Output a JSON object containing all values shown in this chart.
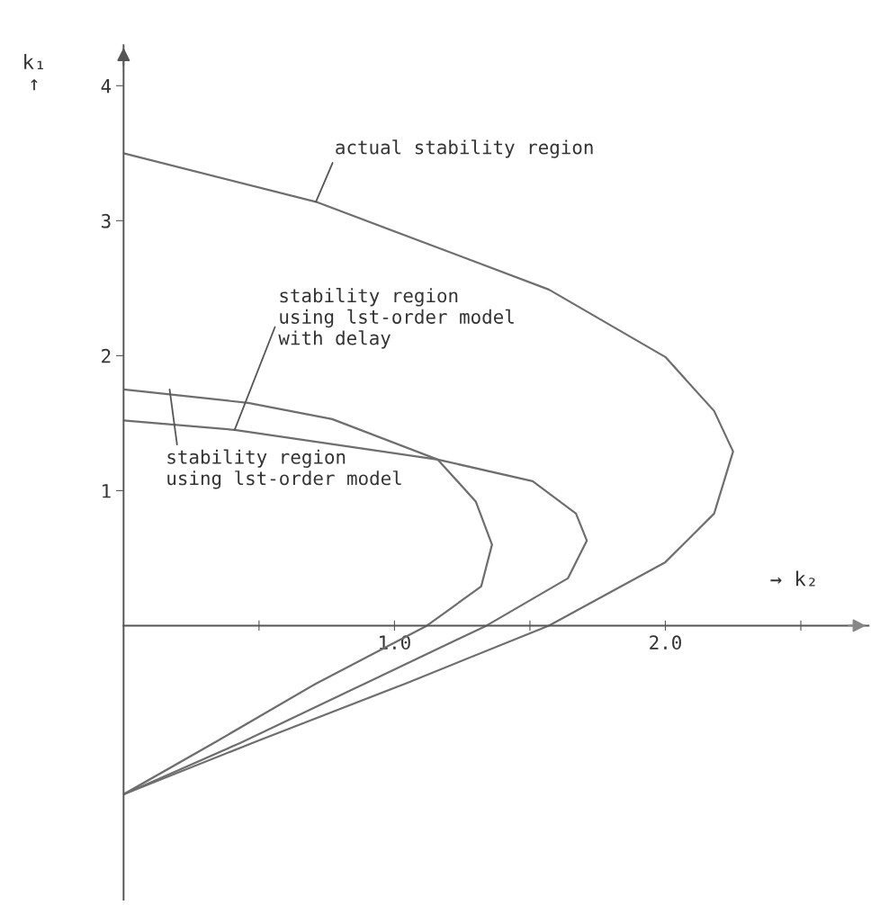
{
  "chart_data": {
    "type": "line",
    "xlabel": "→ k₂",
    "ylabel": "k₁\n↑",
    "xlim": [
      0,
      2.75
    ],
    "ylim": [
      -2.03,
      4.3
    ],
    "xticks": [
      {
        "value": 0.5,
        "label": null
      },
      {
        "value": 1.0,
        "label": "1.0"
      },
      {
        "value": 1.5,
        "label": null
      },
      {
        "value": 2.0,
        "label": "2.0"
      },
      {
        "value": 2.5,
        "label": null
      }
    ],
    "yticks": [
      {
        "value": 1,
        "label": "1"
      },
      {
        "value": 2,
        "label": "2"
      },
      {
        "value": 3,
        "label": "3"
      },
      {
        "value": 4,
        "label": "4"
      }
    ],
    "grid": false,
    "legend": false,
    "marker": "none",
    "line_style": "solid",
    "series": [
      {
        "color": "#6e6e6e",
        "x": [
          0,
          0.71,
          1.57,
          2.0,
          2.18,
          2.25,
          2.18,
          2.0,
          1.57,
          1.04,
          0.5,
          0
        ],
        "values": [
          3.5,
          3.14,
          2.49,
          1.99,
          1.59,
          1.29,
          0.83,
          0.47,
          0,
          -0.43,
          -0.85,
          -1.25
        ]
      },
      {
        "color": "#6e6e6e",
        "x": [
          0,
          0.41,
          1.16,
          1.51,
          1.67,
          1.71,
          1.64,
          1.34,
          0.89,
          0.43,
          0
        ],
        "values": [
          1.52,
          1.45,
          1.23,
          1.07,
          0.83,
          0.63,
          0.35,
          0,
          -0.43,
          -0.87,
          -1.25
        ]
      },
      {
        "color": "#6e6e6e",
        "x": [
          0,
          0.46,
          0.77,
          1.16,
          1.3,
          1.36,
          1.32,
          1.12,
          0.71,
          0.35,
          0
        ],
        "values": [
          1.75,
          1.65,
          1.53,
          1.23,
          0.92,
          0.6,
          0.29,
          0,
          -0.43,
          -0.85,
          -1.25
        ]
      }
    ],
    "annotations": [
      {
        "text": "actual stability region",
        "x": 0.71,
        "y": 3.14
      },
      {
        "text": "stability region\nusing lst-order model\nwith delay",
        "x": 0.41,
        "y": 1.45
      },
      {
        "text": "stability region\nusing lst-order model",
        "x": 0.17,
        "y": 1.75
      }
    ]
  }
}
